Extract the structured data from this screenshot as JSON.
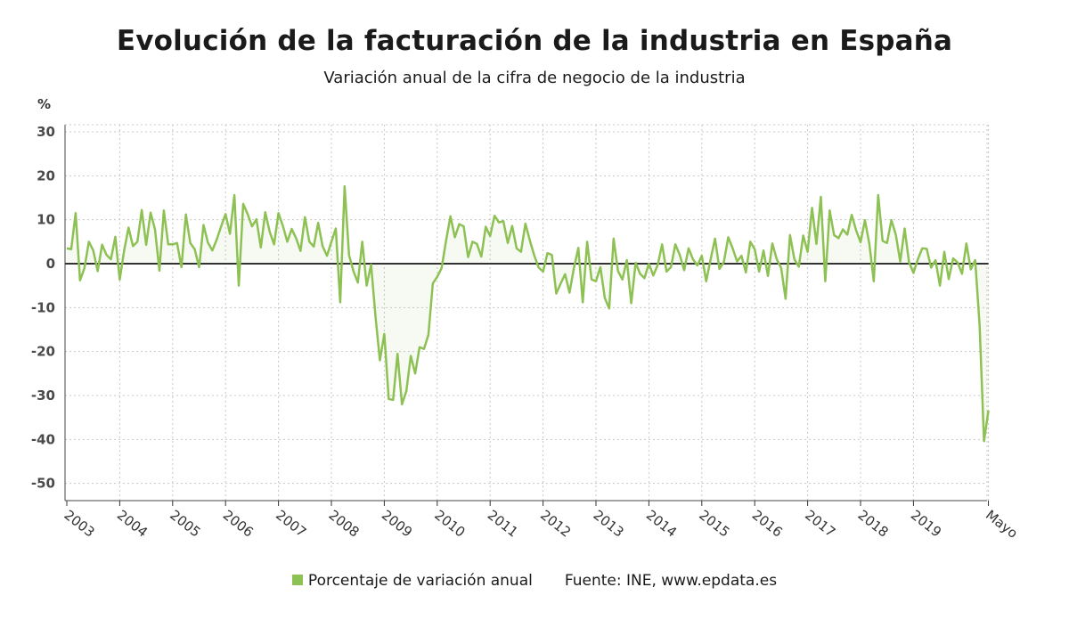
{
  "header": {
    "title": "Evolución de la facturación de la industria en España",
    "subtitle": "Variación anual de la cifra de negocio de la industria"
  },
  "legend": {
    "series_label": "Porcentaje de variación anual",
    "source": "Fuente: INE, www.epdata.es"
  },
  "colors": {
    "series": "#8dc153",
    "zero_line": "#333333",
    "grid": "#c8c8c8"
  },
  "chart_data": {
    "type": "line",
    "ylabel": "%",
    "ylim": [
      -55,
      32
    ],
    "yticks": [
      30,
      20,
      10,
      0,
      -10,
      -20,
      -30,
      -40,
      -50
    ],
    "x_labels": [
      "2003",
      "2004",
      "2005",
      "2006",
      "2007",
      "2008",
      "2009",
      "2010",
      "2011",
      "2012",
      "2013",
      "2014",
      "2015",
      "2016",
      "2017",
      "2018",
      "2019",
      "Mayo"
    ],
    "grid": true,
    "series": [
      {
        "name": "Porcentaje de variación anual",
        "start": "2003-01",
        "end": "2020-05",
        "values": [
          3.5,
          3.3,
          11.5,
          -3.8,
          -1.0,
          5.0,
          3.0,
          -1.7,
          4.3,
          2.0,
          1.0,
          6.1,
          -3.6,
          3.0,
          8.2,
          4.0,
          5.0,
          12.2,
          4.3,
          11.6,
          7.8,
          -1.6,
          12.1,
          4.4,
          4.4,
          4.7,
          -0.8,
          11.2,
          4.7,
          3.3,
          -0.8,
          8.8,
          4.8,
          3.0,
          5.5,
          8.5,
          11.3,
          6.8,
          15.6,
          -5.0,
          13.6,
          11.3,
          8.5,
          10.1,
          3.7,
          11.7,
          7.3,
          4.4,
          11.5,
          8.6,
          5.0,
          7.9,
          5.8,
          2.9,
          10.6,
          5.0,
          3.9,
          9.3,
          4.0,
          1.8,
          5.0,
          8.0,
          -8.8,
          17.6,
          2.0,
          -1.7,
          -4.3,
          5.0,
          -5.0,
          -0.2,
          -12.0,
          -22.0,
          -16.0,
          -30.8,
          -31.0,
          -20.5,
          -32.0,
          -29.0,
          -21.0,
          -25.0,
          -19.0,
          -19.4,
          -16.2,
          -4.5,
          -3.0,
          -1.0,
          5.2,
          10.8,
          6.0,
          9.0,
          8.5,
          1.5,
          5.0,
          4.5,
          1.6,
          8.4,
          6.3,
          10.9,
          9.4,
          9.7,
          4.7,
          8.6,
          3.5,
          2.7,
          9.1,
          5.3,
          1.9,
          -0.9,
          -1.8,
          2.4,
          2.0,
          -6.8,
          -4.5,
          -2.4,
          -6.6,
          -1.0,
          3.6,
          -8.8,
          5.0,
          -3.6,
          -4.0,
          -0.8,
          -7.8,
          -10.2,
          5.7,
          -1.7,
          -3.6,
          0.8,
          -9.0,
          0.2,
          -2.3,
          -3.3,
          0.0,
          -2.7,
          -0.3,
          4.4,
          -1.8,
          -0.8,
          4.4,
          2.0,
          -1.5,
          3.5,
          1.0,
          -0.4,
          1.8,
          -4.0,
          1.0,
          5.7,
          -1.2,
          0.4,
          6.0,
          3.5,
          0.5,
          1.8,
          -2.0,
          5.0,
          3.3,
          -1.8,
          3.0,
          -2.8,
          4.6,
          1.0,
          -1.0,
          -8.0,
          6.5,
          1.0,
          -0.7,
          6.4,
          2.7,
          12.7,
          4.5,
          15.2,
          -4.0,
          12.1,
          6.5,
          5.8,
          7.8,
          6.6,
          11.1,
          7.6,
          4.9,
          9.9,
          4.5,
          -4.0,
          15.6,
          5.2,
          4.7,
          9.9,
          6.6,
          0.5,
          8.0,
          0.3,
          -2.1,
          1.0,
          3.5,
          3.4,
          -0.9,
          0.8,
          -5.0,
          2.7,
          -3.5,
          1.2,
          0.3,
          -2.3,
          4.6,
          -1.3,
          0.8,
          -14.0,
          -40.4,
          -33.4
        ]
      }
    ]
  }
}
